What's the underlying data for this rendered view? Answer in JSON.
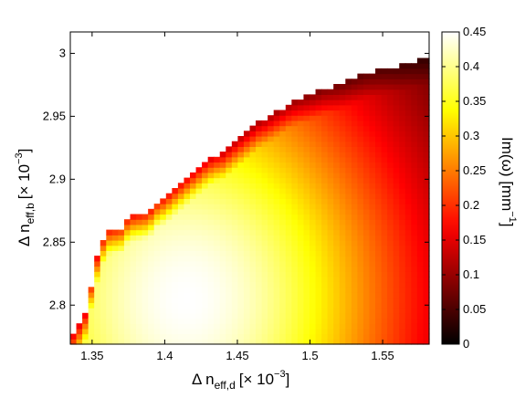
{
  "chart_data": {
    "type": "heatmap",
    "x_axis": {
      "label_main": "Δ n",
      "label_sub": "eff,d",
      "label_scale": "[× 10",
      "label_exp": "−3",
      "label_close": "]",
      "range": [
        1.335,
        1.582
      ],
      "ticks": [
        1.35,
        1.4,
        1.45,
        1.5,
        1.55
      ],
      "tick_labels": [
        "1.35",
        "1.4",
        "1.45",
        "1.5",
        "1.55"
      ]
    },
    "y_axis": {
      "label_main": "Δ n",
      "label_sub": "eff,b",
      "label_scale": "[× 10",
      "label_exp": "−3",
      "label_close": "]",
      "range": [
        2.769,
        3.017
      ],
      "ticks": [
        2.8,
        2.85,
        2.9,
        2.95,
        3.0
      ],
      "tick_labels": [
        "2.8",
        "2.85",
        "2.9",
        "2.95",
        "3"
      ]
    },
    "colorbar": {
      "label": "Im(ω) [mm",
      "label_exp": "−1",
      "label_close": "]",
      "range": [
        0,
        0.45
      ],
      "ticks": [
        0,
        0.05,
        0.1,
        0.15,
        0.2,
        0.25,
        0.3,
        0.35,
        0.4,
        0.45
      ],
      "tick_labels": [
        "0",
        "0.05",
        "0.1",
        "0.15",
        "0.2",
        "0.25",
        "0.3",
        "0.35",
        "0.4",
        "0.45"
      ],
      "colormap": "hot"
    },
    "grid": {
      "nx": 60,
      "ny": 60,
      "peak_x": 1.415,
      "peak_y": 2.805,
      "peak_value": 0.45,
      "boundary": [
        [
          1.335,
          2.773
        ],
        [
          1.345,
          2.79
        ],
        [
          1.35,
          2.82
        ],
        [
          1.355,
          2.845
        ],
        [
          1.36,
          2.86
        ],
        [
          1.37,
          2.862
        ],
        [
          1.375,
          2.87
        ],
        [
          1.38,
          2.872
        ],
        [
          1.385,
          2.872
        ],
        [
          1.39,
          2.875
        ],
        [
          1.395,
          2.882
        ],
        [
          1.4,
          2.885
        ],
        [
          1.405,
          2.89
        ],
        [
          1.41,
          2.895
        ],
        [
          1.415,
          2.9
        ],
        [
          1.42,
          2.905
        ],
        [
          1.425,
          2.91
        ],
        [
          1.43,
          2.915
        ],
        [
          1.435,
          2.918
        ],
        [
          1.44,
          2.92
        ],
        [
          1.445,
          2.925
        ],
        [
          1.45,
          2.93
        ],
        [
          1.455,
          2.935
        ],
        [
          1.46,
          2.94
        ],
        [
          1.465,
          2.945
        ],
        [
          1.47,
          2.948
        ],
        [
          1.475,
          2.952
        ],
        [
          1.48,
          2.956
        ],
        [
          1.485,
          2.96
        ],
        [
          1.49,
          2.963
        ],
        [
          1.5,
          2.967
        ],
        [
          1.51,
          2.972
        ],
        [
          1.52,
          2.975
        ],
        [
          1.53,
          2.98
        ],
        [
          1.54,
          2.985
        ],
        [
          1.55,
          2.988
        ],
        [
          1.56,
          2.99
        ],
        [
          1.57,
          2.993
        ],
        [
          1.582,
          2.996
        ]
      ]
    }
  }
}
